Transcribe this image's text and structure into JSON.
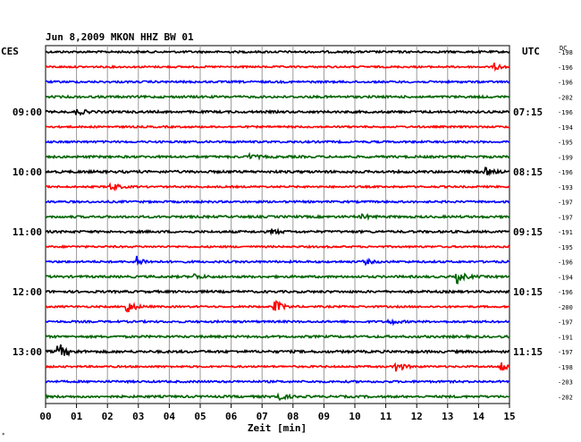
{
  "chart_data": {
    "type": "line",
    "title": "Jun 8,2009   MKON HHZ BW 01",
    "xlabel": "Zeit [min]",
    "xlim": [
      0,
      15
    ],
    "x_ticks": [
      "00",
      "01",
      "02",
      "03",
      "04",
      "05",
      "06",
      "07",
      "08",
      "09",
      "10",
      "11",
      "12",
      "13",
      "14",
      "15"
    ],
    "left_timezone": "CES",
    "right_timezone": "UTC",
    "dc_label": "DC",
    "corner_mark": "*",
    "trace_colors": [
      "#000000",
      "#ff0000",
      "#0000ff",
      "#006400"
    ],
    "traces": [
      {
        "row": 0,
        "color_index": 0,
        "left_label": "",
        "right_label": "",
        "dc": "-198",
        "amplitude": 1.0,
        "events": []
      },
      {
        "row": 1,
        "color_index": 1,
        "left_label": "",
        "right_label": "",
        "dc": "-196",
        "amplitude": 0.9,
        "events": [
          {
            "minute": 14.5,
            "amp": 4
          }
        ]
      },
      {
        "row": 2,
        "color_index": 2,
        "left_label": "",
        "right_label": "",
        "dc": "-196",
        "amplitude": 1.0,
        "events": []
      },
      {
        "row": 3,
        "color_index": 3,
        "left_label": "",
        "right_label": "",
        "dc": "-202",
        "amplitude": 1.1,
        "events": []
      },
      {
        "row": 4,
        "color_index": 0,
        "left_label": "09:00",
        "right_label": "07:15",
        "dc": "-196",
        "amplitude": 1.1,
        "events": [
          {
            "minute": 1.0,
            "amp": 4
          }
        ]
      },
      {
        "row": 5,
        "color_index": 1,
        "left_label": "",
        "right_label": "",
        "dc": "-194",
        "amplitude": 0.9,
        "events": []
      },
      {
        "row": 6,
        "color_index": 2,
        "left_label": "",
        "right_label": "",
        "dc": "-195",
        "amplitude": 1.0,
        "events": []
      },
      {
        "row": 7,
        "color_index": 3,
        "left_label": "",
        "right_label": "",
        "dc": "-199",
        "amplitude": 1.1,
        "events": [
          {
            "minute": 6.6,
            "amp": 3
          }
        ]
      },
      {
        "row": 8,
        "color_index": 0,
        "left_label": "10:00",
        "right_label": "08:15",
        "dc": "-196",
        "amplitude": 1.2,
        "events": [
          {
            "minute": 14.2,
            "amp": 4
          }
        ]
      },
      {
        "row": 9,
        "color_index": 1,
        "left_label": "",
        "right_label": "",
        "dc": "-193",
        "amplitude": 0.9,
        "events": [
          {
            "minute": 2.1,
            "amp": 5
          }
        ]
      },
      {
        "row": 10,
        "color_index": 2,
        "left_label": "",
        "right_label": "",
        "dc": "-197",
        "amplitude": 1.0,
        "events": []
      },
      {
        "row": 11,
        "color_index": 3,
        "left_label": "",
        "right_label": "",
        "dc": "-197",
        "amplitude": 1.1,
        "events": [
          {
            "minute": 10.2,
            "amp": 3
          }
        ]
      },
      {
        "row": 12,
        "color_index": 0,
        "left_label": "11:00",
        "right_label": "09:15",
        "dc": "-191",
        "amplitude": 1.1,
        "events": [
          {
            "minute": 7.3,
            "amp": 3
          }
        ]
      },
      {
        "row": 13,
        "color_index": 1,
        "left_label": "",
        "right_label": "",
        "dc": "-195",
        "amplitude": 0.9,
        "events": []
      },
      {
        "row": 14,
        "color_index": 2,
        "left_label": "",
        "right_label": "",
        "dc": "-196",
        "amplitude": 1.0,
        "events": [
          {
            "minute": 2.9,
            "amp": 7
          },
          {
            "minute": 10.3,
            "amp": 3
          }
        ]
      },
      {
        "row": 15,
        "color_index": 3,
        "left_label": "",
        "right_label": "",
        "dc": "-194",
        "amplitude": 1.1,
        "events": [
          {
            "minute": 4.8,
            "amp": 3
          },
          {
            "minute": 13.3,
            "amp": 7
          }
        ]
      },
      {
        "row": 16,
        "color_index": 0,
        "left_label": "12:00",
        "right_label": "10:15",
        "dc": "-196",
        "amplitude": 1.1,
        "events": []
      },
      {
        "row": 17,
        "color_index": 1,
        "left_label": "",
        "right_label": "",
        "dc": "-200",
        "amplitude": 0.9,
        "events": [
          {
            "minute": 2.6,
            "amp": 9
          },
          {
            "minute": 7.4,
            "amp": 8
          }
        ]
      },
      {
        "row": 18,
        "color_index": 2,
        "left_label": "",
        "right_label": "",
        "dc": "-197",
        "amplitude": 1.0,
        "events": [
          {
            "minute": 11.1,
            "amp": 3
          }
        ]
      },
      {
        "row": 19,
        "color_index": 3,
        "left_label": "",
        "right_label": "",
        "dc": "-191",
        "amplitude": 1.1,
        "events": []
      },
      {
        "row": 20,
        "color_index": 0,
        "left_label": "13:00",
        "right_label": "11:15",
        "dc": "-197",
        "amplitude": 1.2,
        "events": [
          {
            "minute": 0.4,
            "amp": 11
          }
        ]
      },
      {
        "row": 21,
        "color_index": 1,
        "left_label": "",
        "right_label": "",
        "dc": "-198",
        "amplitude": 0.9,
        "events": [
          {
            "minute": 11.3,
            "amp": 7
          },
          {
            "minute": 14.7,
            "amp": 7
          }
        ]
      },
      {
        "row": 22,
        "color_index": 2,
        "left_label": "",
        "right_label": "",
        "dc": "-203",
        "amplitude": 1.0,
        "events": []
      },
      {
        "row": 23,
        "color_index": 3,
        "left_label": "",
        "right_label": "",
        "dc": "-202",
        "amplitude": 1.1,
        "events": [
          {
            "minute": 7.4,
            "amp": 7
          }
        ]
      }
    ]
  }
}
